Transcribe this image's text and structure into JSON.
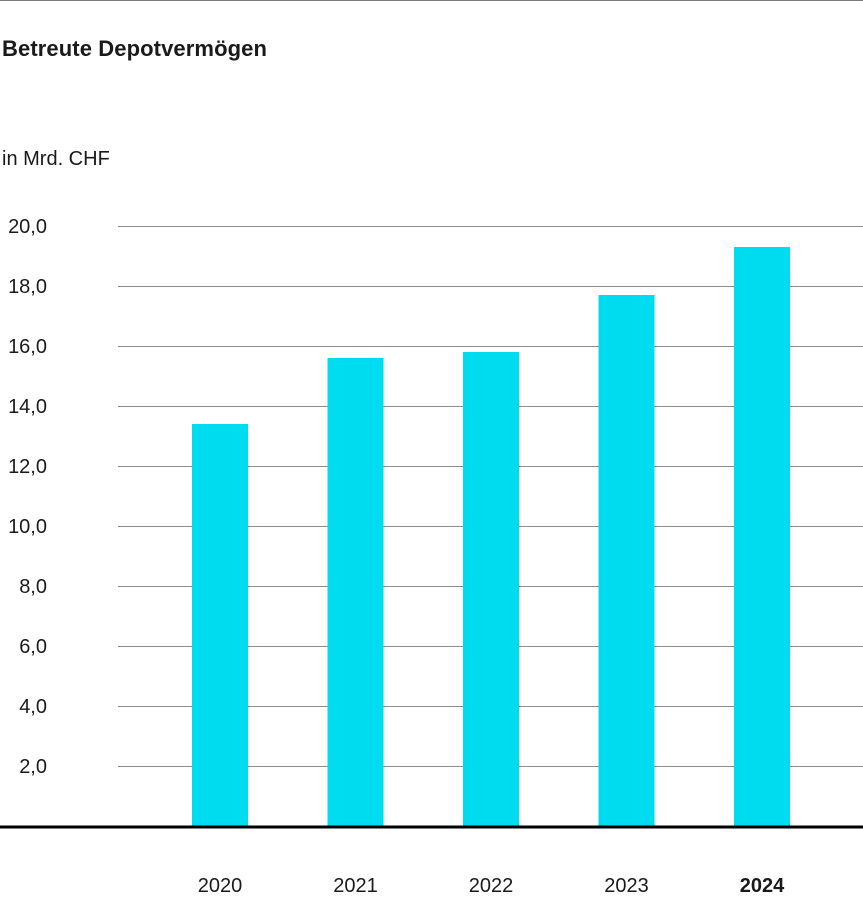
{
  "header": {
    "title": "Betreute Depotvermögen",
    "unit": "in Mrd. CHF"
  },
  "colors": {
    "bar": "#00dcef",
    "highlight_label": "#00c9e6",
    "gridline": "#8c8c8c",
    "baseline": "#000000"
  },
  "chart_data": {
    "type": "bar",
    "title": "Betreute Depotvermögen",
    "ylabel": "in Mrd. CHF",
    "xlabel": "",
    "categories": [
      "2020",
      "2021",
      "2022",
      "2023",
      "2024"
    ],
    "values": [
      13.4,
      15.6,
      15.8,
      17.7,
      19.3
    ],
    "highlight_category": "2024",
    "ylim": [
      0,
      20
    ],
    "yticks": [
      2,
      4,
      6,
      8,
      10,
      12,
      14,
      16,
      18,
      20
    ],
    "ytick_labels": [
      "2,0",
      "4,0",
      "6,0",
      "8,0",
      "10,0",
      "12,0",
      "14,0",
      "16,0",
      "18,0",
      "20,0"
    ],
    "grid": true,
    "legend": "none"
  }
}
